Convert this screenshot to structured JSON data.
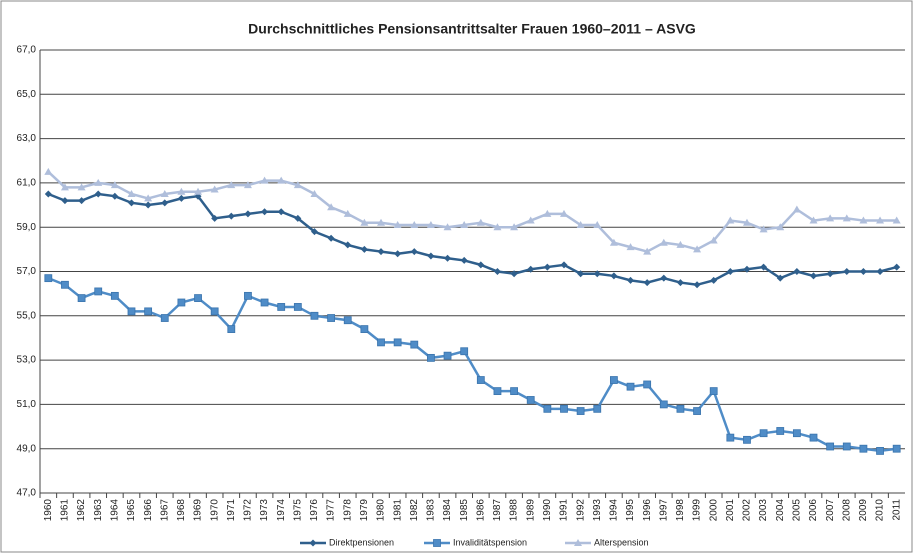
{
  "chart_data": {
    "type": "line",
    "title": "Durchschnittliches Pensionsantrittsalter Frauen 1960–2011 – ASVG",
    "categories": [
      "1960",
      "1961",
      "1962",
      "1963",
      "1964",
      "1965",
      "1966",
      "1967",
      "1968",
      "1969",
      "1970",
      "1971",
      "1972",
      "1973",
      "1974",
      "1975",
      "1976",
      "1977",
      "1978",
      "1979",
      "1980",
      "1981",
      "1982",
      "1983",
      "1984",
      "1985",
      "1986",
      "1987",
      "1988",
      "1989",
      "1990",
      "1991",
      "1992",
      "1993",
      "1994",
      "1995",
      "1996",
      "1997",
      "1998",
      "1999",
      "2000",
      "2001",
      "2002",
      "2003",
      "2004",
      "2005",
      "2006",
      "2007",
      "2008",
      "2009",
      "2010",
      "2011"
    ],
    "series": [
      {
        "name": "Direktpensionen",
        "color": "#2f5f8c",
        "marker": "diamond",
        "values": [
          60.5,
          60.2,
          60.2,
          60.5,
          60.4,
          60.1,
          60.0,
          60.1,
          60.3,
          60.4,
          59.4,
          59.5,
          59.6,
          59.7,
          59.7,
          59.4,
          58.8,
          58.5,
          58.2,
          58.0,
          57.9,
          57.8,
          57.9,
          57.7,
          57.6,
          57.5,
          57.3,
          57.0,
          56.9,
          57.1,
          57.2,
          57.3,
          56.9,
          56.9,
          56.8,
          56.6,
          56.5,
          56.7,
          56.5,
          56.4,
          56.6,
          57.0,
          57.1,
          57.2,
          56.7,
          57.0,
          56.8,
          56.9,
          57.0,
          57.0,
          57.0,
          57.2
        ]
      },
      {
        "name": "Invaliditätspension",
        "color": "#4f8cc7",
        "marker": "square",
        "values": [
          56.7,
          56.4,
          55.8,
          56.1,
          55.9,
          55.2,
          55.2,
          54.9,
          55.6,
          55.8,
          55.2,
          54.4,
          55.9,
          55.6,
          55.4,
          55.4,
          55.0,
          54.9,
          54.8,
          54.4,
          53.8,
          53.8,
          53.7,
          53.1,
          53.2,
          53.4,
          52.1,
          51.6,
          51.6,
          51.2,
          50.8,
          50.8,
          50.7,
          50.8,
          52.1,
          51.8,
          51.9,
          51.0,
          50.8,
          50.7,
          51.6,
          49.5,
          49.4,
          49.7,
          49.8,
          49.7,
          49.5,
          49.1,
          49.1,
          49.0,
          48.9,
          49.0
        ]
      },
      {
        "name": "Alterspension",
        "color": "#afbedb",
        "marker": "triangle",
        "values": [
          61.5,
          60.8,
          60.8,
          61.0,
          60.9,
          60.5,
          60.3,
          60.5,
          60.6,
          60.6,
          60.7,
          60.9,
          60.9,
          61.1,
          61.1,
          60.9,
          60.5,
          59.9,
          59.6,
          59.2,
          59.2,
          59.1,
          59.1,
          59.1,
          59.0,
          59.1,
          59.2,
          59.0,
          59.0,
          59.3,
          59.6,
          59.6,
          59.1,
          59.1,
          58.3,
          58.1,
          57.9,
          58.3,
          58.2,
          58.0,
          58.4,
          59.3,
          59.2,
          58.9,
          59.0,
          59.8,
          59.3,
          59.4,
          59.4,
          59.3,
          59.3,
          59.3
        ]
      }
    ],
    "ylim": [
      47,
      67
    ],
    "yticks": [
      {
        "value": 47,
        "label": "47,0"
      },
      {
        "value": 49,
        "label": "49,0"
      },
      {
        "value": 51,
        "label": "51,0"
      },
      {
        "value": 53,
        "label": "53,0"
      },
      {
        "value": 55,
        "label": "55,0"
      },
      {
        "value": 57,
        "label": "57,0"
      },
      {
        "value": 59,
        "label": "59,0"
      },
      {
        "value": 61,
        "label": "61,0"
      },
      {
        "value": 63,
        "label": "63,0"
      },
      {
        "value": 65,
        "label": "65,0"
      },
      {
        "value": 67,
        "label": "67,0"
      }
    ],
    "grid": true,
    "legend": "bottom"
  }
}
